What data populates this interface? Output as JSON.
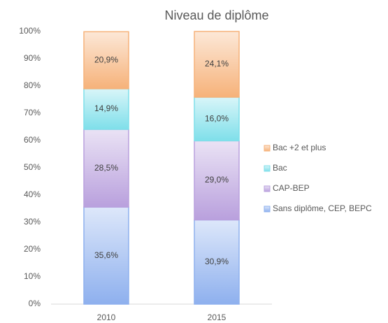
{
  "chart_data": {
    "type": "stacked_bar",
    "title": "Niveau de diplôme",
    "categories": [
      "2010",
      "2015"
    ],
    "series": [
      {
        "name": "Sans diplôme, CEP, BEPC",
        "color": "#8eb0ee",
        "values": [
          35.6,
          30.9
        ],
        "value_labels": [
          "35,6%",
          "30,9%"
        ]
      },
      {
        "name": "CAP-BEP",
        "color": "#b9a0dd",
        "values": [
          28.5,
          29.0
        ],
        "value_labels": [
          "28,5%",
          "29,0%"
        ]
      },
      {
        "name": "Bac",
        "color": "#7fdfea",
        "values": [
          14.9,
          16.0
        ],
        "value_labels": [
          "14,9%",
          "16,0%"
        ]
      },
      {
        "name": "Bac +2 et plus",
        "color": "#f6b27a",
        "values": [
          20.9,
          24.1
        ],
        "value_labels": [
          "20,9%",
          "24,1%"
        ]
      }
    ],
    "ylim": [
      0,
      100
    ],
    "yticks": [
      {
        "value": 0,
        "label": "0%"
      },
      {
        "value": 10,
        "label": "10%"
      },
      {
        "value": 20,
        "label": "20%"
      },
      {
        "value": 30,
        "label": "30%"
      },
      {
        "value": 40,
        "label": "40%"
      },
      {
        "value": 50,
        "label": "50%"
      },
      {
        "value": 60,
        "label": "60%"
      },
      {
        "value": 70,
        "label": "70%"
      },
      {
        "value": 80,
        "label": "80%"
      },
      {
        "value": 90,
        "label": "90%"
      },
      {
        "value": 100,
        "label": "100%"
      }
    ],
    "legend": "right"
  }
}
